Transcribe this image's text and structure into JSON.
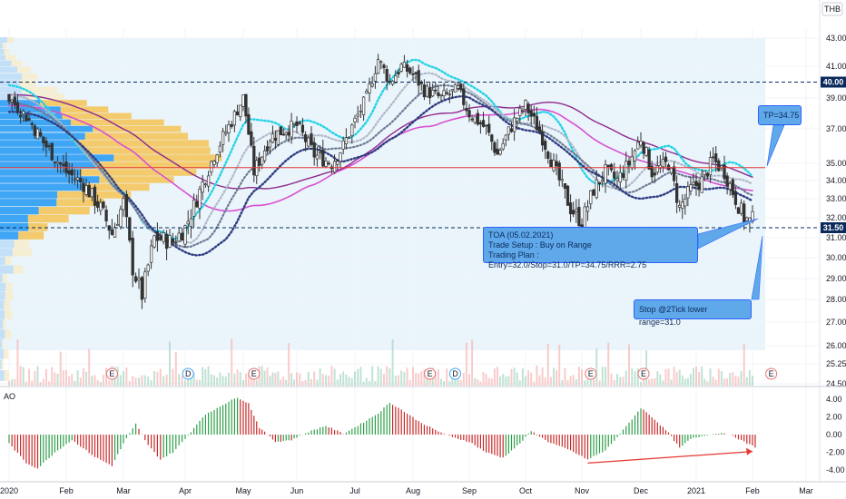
{
  "currency": "THB",
  "ao_label": "AO",
  "chart_data": {
    "type": "candlestick",
    "symbol": "TOA",
    "x_ticks": [
      "2020",
      "Feb",
      "Mar",
      "Apr",
      "May",
      "Jun",
      "Jul",
      "Aug",
      "Sep",
      "Oct",
      "Nov",
      "Dec",
      "2021",
      "Feb",
      "Mar"
    ],
    "y_ticks": [
      24.5,
      25.25,
      26.0,
      27.0,
      28.0,
      29.0,
      30.0,
      31.0,
      32.0,
      33.0,
      34.0,
      35.0,
      37.0,
      39.0,
      41.0,
      43.0
    ],
    "y_tick_labels": [
      "24.50",
      "25.25",
      "26.00",
      "27.00",
      "28.00",
      "29.00",
      "30.00",
      "31.00",
      "32.00",
      "33.00",
      "34.00",
      "35.00",
      "37.00",
      "39.00",
      "41.00",
      "43.00"
    ],
    "ylim": [
      24.3,
      43.4
    ],
    "price_lines": [
      {
        "name": "resistance",
        "value": 40.0,
        "label": "40.00",
        "style": "dashed",
        "color": "#0b2a5c"
      },
      {
        "name": "support",
        "value": 31.5,
        "label": "31.50",
        "style": "dashed",
        "color": "#0b2a5c"
      },
      {
        "name": "tp-line",
        "value": 34.75,
        "style": "solid",
        "color": "#e53935"
      }
    ],
    "annotations": {
      "setup_note": [
        "TOA (05.02.2021)",
        "Trade Setup : Buy on Range",
        "Trading Plan : Entry=32.0/Stop=31.0/TP=34.75/RRR=2.75"
      ],
      "tp_note": "TP=34.75",
      "stop_note": "Stop @2Tick lower range=31.0"
    },
    "event_markers": [
      {
        "label": "E",
        "month_index": 1.8,
        "color": "#e57373"
      },
      {
        "label": "D",
        "month_index": 3.05,
        "color": "#42a5f5"
      },
      {
        "label": "E",
        "month_index": 4.2,
        "color": "#e57373"
      },
      {
        "label": "E",
        "month_index": 7.3,
        "color": "#e57373"
      },
      {
        "label": "D",
        "month_index": 7.75,
        "color": "#42a5f5"
      },
      {
        "label": "E",
        "month_index": 10.15,
        "color": "#e57373"
      },
      {
        "label": "E",
        "month_index": 11.05,
        "color": "#e57373"
      },
      {
        "label": "E",
        "month_index": 13.35,
        "color": "#e57373"
      }
    ],
    "close_anchors": [
      [
        0.0,
        39.0
      ],
      [
        0.3,
        37.8
      ],
      [
        0.6,
        36.2
      ],
      [
        1.0,
        34.5
      ],
      [
        1.3,
        33.8
      ],
      [
        1.6,
        32.5
      ],
      [
        1.8,
        31.2
      ],
      [
        2.0,
        32.8
      ],
      [
        2.15,
        29.5
      ],
      [
        2.3,
        28.2
      ],
      [
        2.5,
        31.0
      ],
      [
        2.8,
        30.8
      ],
      [
        3.0,
        31.5
      ],
      [
        3.2,
        33.0
      ],
      [
        3.5,
        35.5
      ],
      [
        3.8,
        37.5
      ],
      [
        4.0,
        39.0
      ],
      [
        4.2,
        34.5
      ],
      [
        4.5,
        36.5
      ],
      [
        4.8,
        37.0
      ],
      [
        5.0,
        37.2
      ],
      [
        5.3,
        35.5
      ],
      [
        5.6,
        35.0
      ],
      [
        5.8,
        36.0
      ],
      [
        6.0,
        37.5
      ],
      [
        6.2,
        39.0
      ],
      [
        6.4,
        41.5
      ],
      [
        6.6,
        40.0
      ],
      [
        6.8,
        41.0
      ],
      [
        7.0,
        40.5
      ],
      [
        7.2,
        39.5
      ],
      [
        7.5,
        39.0
      ],
      [
        7.8,
        39.5
      ],
      [
        8.0,
        38.0
      ],
      [
        8.3,
        37.0
      ],
      [
        8.5,
        35.5
      ],
      [
        8.8,
        37.5
      ],
      [
        9.0,
        38.5
      ],
      [
        9.3,
        36.5
      ],
      [
        9.6,
        34.0
      ],
      [
        9.8,
        32.5
      ],
      [
        10.0,
        31.8
      ],
      [
        10.2,
        33.5
      ],
      [
        10.4,
        34.5
      ],
      [
        10.6,
        34.0
      ],
      [
        10.8,
        35.0
      ],
      [
        11.0,
        36.5
      ],
      [
        11.2,
        34.5
      ],
      [
        11.5,
        35.0
      ],
      [
        11.7,
        32.5
      ],
      [
        11.9,
        33.5
      ],
      [
        12.1,
        34.0
      ],
      [
        12.3,
        35.2
      ],
      [
        12.5,
        34.5
      ],
      [
        12.7,
        33.0
      ],
      [
        12.85,
        32.0
      ],
      [
        12.95,
        31.8
      ],
      [
        13.05,
        32.0
      ]
    ],
    "volume_profile_note": "horizontal volume profile at left",
    "oscillator": {
      "name": "AO",
      "ylim": [
        -5.2,
        5.0
      ],
      "y_ticks": [
        4.0,
        2.0,
        0.0,
        -2.0,
        -4.0
      ],
      "y_tick_labels": [
        "4.00",
        "2.00",
        "0.00",
        "-2.00",
        "-4.00"
      ],
      "anchors": [
        [
          0.0,
          -1.0
        ],
        [
          0.3,
          -3.2
        ],
        [
          0.5,
          -3.8
        ],
        [
          0.8,
          -2.0
        ],
        [
          1.1,
          -0.6
        ],
        [
          1.5,
          -2.5
        ],
        [
          1.8,
          -3.5
        ],
        [
          2.0,
          -1.0
        ],
        [
          2.2,
          1.2
        ],
        [
          2.4,
          -1.2
        ],
        [
          2.6,
          -2.8
        ],
        [
          2.8,
          -2.0
        ],
        [
          3.0,
          -0.5
        ],
        [
          3.3,
          2.0
        ],
        [
          3.6,
          3.2
        ],
        [
          3.9,
          4.2
        ],
        [
          4.1,
          3.5
        ],
        [
          4.3,
          0.8
        ],
        [
          4.6,
          -0.8
        ],
        [
          4.9,
          -0.6
        ],
        [
          5.2,
          0.3
        ],
        [
          5.5,
          1.0
        ],
        [
          5.8,
          0.1
        ],
        [
          6.1,
          1.2
        ],
        [
          6.4,
          2.4
        ],
        [
          6.6,
          3.6
        ],
        [
          6.8,
          2.8
        ],
        [
          7.1,
          1.5
        ],
        [
          7.4,
          0.5
        ],
        [
          7.7,
          -0.3
        ],
        [
          8.0,
          -0.8
        ],
        [
          8.3,
          -2.0
        ],
        [
          8.6,
          -2.6
        ],
        [
          8.9,
          -1.0
        ],
        [
          9.1,
          0.4
        ],
        [
          9.4,
          -0.8
        ],
        [
          9.8,
          -1.8
        ],
        [
          10.1,
          -2.8
        ],
        [
          10.4,
          -1.8
        ],
        [
          10.7,
          0.5
        ],
        [
          11.0,
          3.0
        ],
        [
          11.2,
          2.0
        ],
        [
          11.5,
          0.2
        ],
        [
          11.7,
          -1.5
        ],
        [
          11.9,
          -0.5
        ],
        [
          12.2,
          0.0
        ],
        [
          12.5,
          0.2
        ],
        [
          12.7,
          -0.3
        ],
        [
          12.9,
          -1.0
        ],
        [
          13.05,
          -1.4
        ]
      ],
      "divergence_arrow": {
        "from": [
          10.1,
          -3.2
        ],
        "to": [
          13.0,
          -1.9
        ],
        "color": "#e53935"
      }
    },
    "ma_lines": [
      {
        "name": "magenta-ma",
        "color": "#d94fd0"
      },
      {
        "name": "purple-ma",
        "color": "#8e2a8e"
      },
      {
        "name": "cyan-dots",
        "color": "#22d3e6"
      },
      {
        "name": "light-gray-dots",
        "color": "#b0b8c8"
      },
      {
        "name": "gray-dots",
        "color": "#6d7a94"
      },
      {
        "name": "navy-dots",
        "color": "#2f3d80"
      }
    ],
    "colors": {
      "up": "#26a69a",
      "down": "#ef5350",
      "candle": "#333333",
      "range_fill": "#eaf4fb",
      "profile_blue": "#2196f3",
      "profile_gold": "#f5c04a"
    }
  }
}
